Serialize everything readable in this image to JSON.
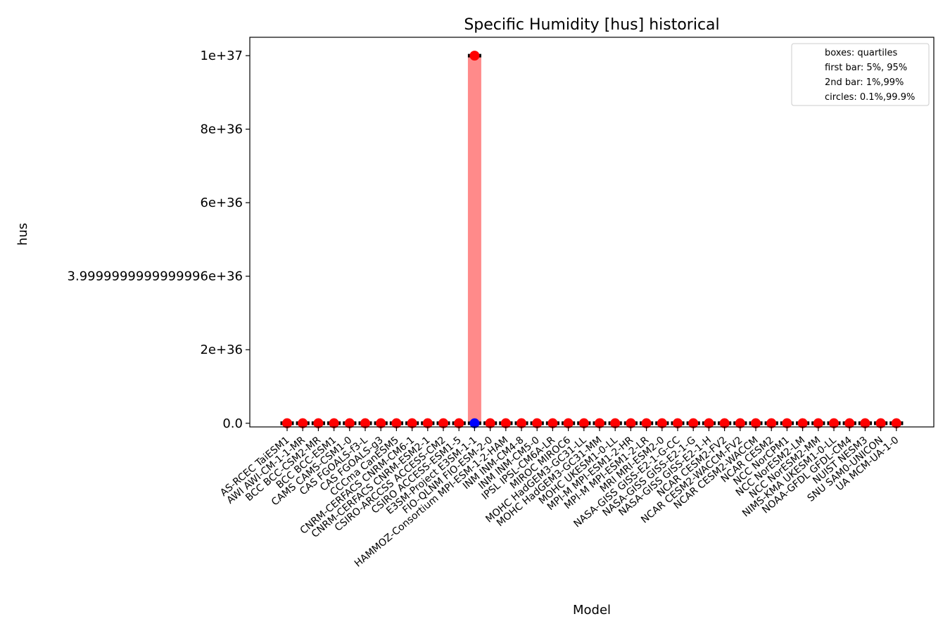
{
  "chart_data": {
    "type": "box",
    "title": "Specific Humidity [hus] historical",
    "xlabel": "Model",
    "ylabel": "hus",
    "ylim": [
      -1e+35,
      1.05e+37
    ],
    "yticks": [
      0,
      2e+36,
      4e+36,
      6e+36,
      8e+36,
      1e+37
    ],
    "ytick_labels": [
      "0.0",
      "2e+36",
      "3.9999999999999996e+36",
      "6e+36",
      "8e+36",
      "1e+37"
    ],
    "grid": false,
    "legend_position": "top-right",
    "legend": [
      "boxes: quartiles",
      "first bar: 5%, 95%",
      "2nd bar: 1%,99%",
      "circles: 0.1%,99.9%"
    ],
    "colors": {
      "box": "#ff8a8a",
      "circle_high": "#ff0000",
      "circle_low": "#0000ff",
      "whisker": "#000000"
    },
    "categories": [
      "AS-RCEC TaiESM1",
      "AWI AWI-CM-1-1-MR",
      "BCC BCC-CSM2-MR",
      "BCC BCC-ESM1",
      "CAMS CAMS-CSM1-0",
      "CAS FGOALS-f3-L",
      "CAS FGOALS-g3",
      "CCCma CanESM5",
      "CNRM-CERFACS CNRM-CM6-1",
      "CNRM-CERFACS CNRM-ESM2-1",
      "CSIRO-ARCCSS ACCESS-CM2",
      "CSIRO ACCESS-ESM1-5",
      "E3SM-Project E3SM-1-1",
      "FIO-QLNM FIO-ESM-2-0",
      "HAMMOZ-Consortium MPI-ESM-1-2-HAM",
      "INM INM-CM4-8",
      "INM INM-CM5-0",
      "IPSL IPSL-CM6A-LR",
      "MIROC MIROC6",
      "MOHC HadGEM3-GC31-LL",
      "MOHC HadGEM3-GC31-MM",
      "MOHC UKESM1-0-LL",
      "MPI-M MPI-ESM1-2-HR",
      "MPI-M MPI-ESM1-2-LR",
      "MRI MRI-ESM2-0",
      "NASA-GISS GISS-E2-1-G-CC",
      "NASA-GISS GISS-E2-1-G",
      "NASA-GISS GISS-E2-1-H",
      "NCAR CESM2-FV2",
      "NCAR CESM2-WACCM-FV2",
      "NCAR CESM2-WACCM",
      "NCAR CESM2",
      "NCC NorCPM1",
      "NCC NorESM2-LM",
      "NCC NorESM2-MM",
      "NIMS-KMA UKESM1-0-LL",
      "NOAA-GFDL GFDL-CM4",
      "NUIST NESM3",
      "SNU SAM0-UNICON",
      "UA MCM-UA-1-0"
    ],
    "series": [
      {
        "name": "quartile_low",
        "values": [
          0,
          0,
          0,
          0,
          0,
          0,
          0,
          0,
          0,
          0,
          0,
          0,
          0,
          0,
          0,
          0,
          0,
          0,
          0,
          0,
          0,
          0,
          0,
          0,
          0,
          0,
          0,
          0,
          0,
          0,
          0,
          0,
          0,
          0,
          0,
          0,
          0,
          0,
          0,
          0
        ]
      },
      {
        "name": "quartile_high",
        "values": [
          0,
          0,
          0,
          0,
          0,
          0,
          0,
          0,
          0,
          0,
          0,
          0,
          1e+37,
          0,
          0,
          0,
          0,
          0,
          0,
          0,
          0,
          0,
          0,
          0,
          0,
          0,
          0,
          0,
          0,
          0,
          0,
          0,
          0,
          0,
          0,
          0,
          0,
          0,
          0,
          0
        ]
      },
      {
        "name": "circle_high",
        "values": [
          0,
          0,
          0,
          0,
          0,
          0,
          0,
          0,
          0,
          0,
          0,
          0,
          1e+37,
          0,
          0,
          0,
          0,
          0,
          0,
          0,
          0,
          0,
          0,
          0,
          0,
          0,
          0,
          0,
          0,
          0,
          0,
          0,
          0,
          0,
          0,
          0,
          0,
          0,
          0,
          0
        ]
      },
      {
        "name": "circle_low",
        "values": [
          0,
          0,
          0,
          0,
          0,
          0,
          0,
          0,
          0,
          0,
          0,
          0,
          0,
          0,
          0,
          0,
          0,
          0,
          0,
          0,
          0,
          0,
          0,
          0,
          0,
          0,
          0,
          0,
          0,
          0,
          0,
          0,
          0,
          0,
          0,
          0,
          0,
          0,
          0,
          0
        ]
      }
    ]
  }
}
